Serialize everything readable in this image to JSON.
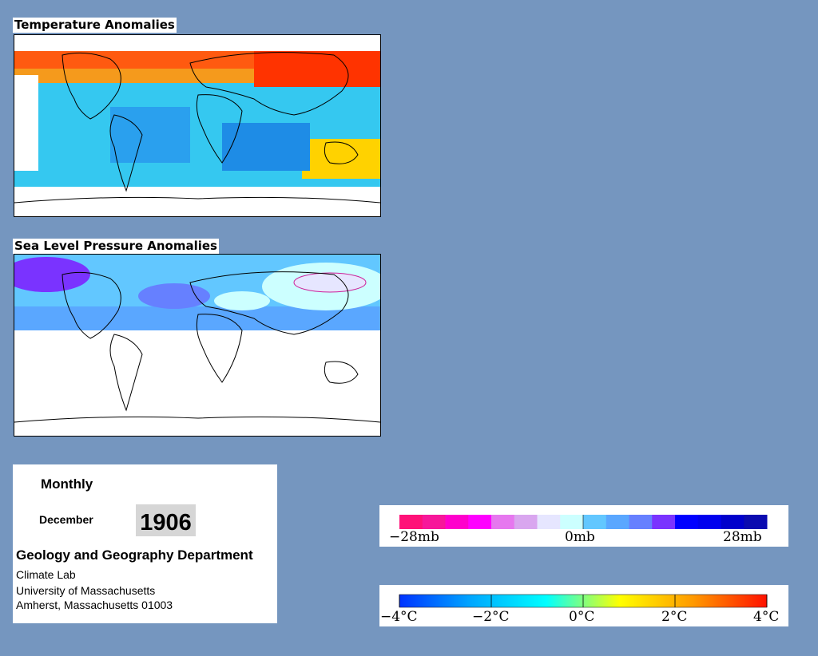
{
  "panels": {
    "temperature": {
      "title": "Temperature Anomalies"
    },
    "pressure": {
      "title": "Sea Level Pressure Anomalies"
    }
  },
  "info": {
    "period": "Monthly",
    "month": "December",
    "year": "1906",
    "department": "Geology and Geography Department",
    "lab": "Climate Lab",
    "university": "University of Massachusetts",
    "address": "Amherst, Massachusetts 01003"
  },
  "legends": {
    "pressure": {
      "labels": [
        "−28mb",
        "0mb",
        "28mb"
      ],
      "colors": [
        "#ff1178",
        "#f7179a",
        "#ff00cc",
        "#ff00ff",
        "#e677ef",
        "#d9a6ef",
        "#e6e6ff",
        "#ccffff",
        "#62c7ff",
        "#5aa7ff",
        "#6680ff",
        "#7a33ff",
        "#0000ff",
        "#0000ee",
        "#0000cc",
        "#0b0bb0"
      ]
    },
    "temperature": {
      "labels": [
        "−4°C",
        "−2°C",
        "0°C",
        "2°C",
        "4°C"
      ],
      "colors": [
        "#0033ff",
        "#00aaff",
        "#00ffff",
        "#ffff00",
        "#ff9900",
        "#ff1100"
      ]
    }
  }
}
